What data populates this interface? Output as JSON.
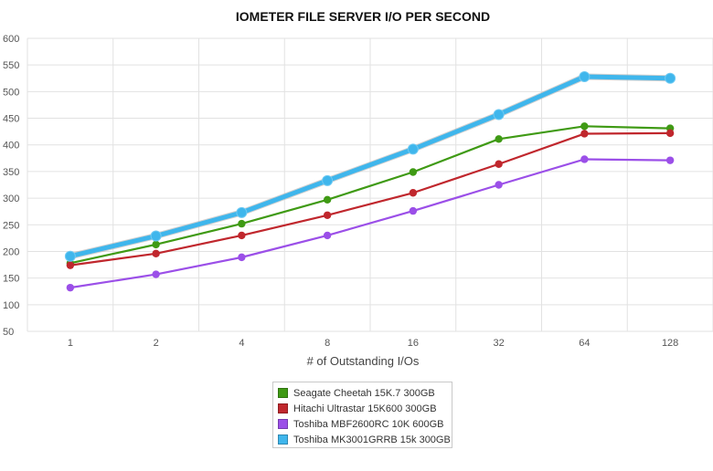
{
  "chart_data": {
    "type": "line",
    "title": "IOMETER FILE SERVER I/O PER SECOND",
    "xlabel": "# of Outstanding I/Os",
    "ylabel": "",
    "categories": [
      "1",
      "2",
      "4",
      "8",
      "16",
      "32",
      "64",
      "128"
    ],
    "yticks": [
      50,
      100,
      150,
      200,
      250,
      300,
      350,
      400,
      450,
      500,
      550,
      600
    ],
    "ylim": [
      50,
      600
    ],
    "grid": true,
    "legend_position": "bottom-center",
    "series": [
      {
        "name": "Seagate Cheetah 15K.7 300GB",
        "color": "#3f9a14",
        "values": [
          178,
          213,
          252,
          297,
          349,
          411,
          435,
          431
        ]
      },
      {
        "name": "Hitachi Ultrastar 15K600 300GB",
        "color": "#c0272d",
        "values": [
          174,
          196,
          230,
          268,
          310,
          364,
          421,
          422
        ]
      },
      {
        "name": "Toshiba MBF2600RC 10K 600GB",
        "color": "#9b4fe8",
        "values": [
          132,
          157,
          189,
          230,
          276,
          325,
          373,
          371
        ]
      },
      {
        "name": "Toshiba MK3001GRRB 15k 300GB",
        "color": "#3fb6ec",
        "values": [
          191,
          229,
          273,
          333,
          392,
          457,
          528,
          525
        ]
      }
    ]
  }
}
